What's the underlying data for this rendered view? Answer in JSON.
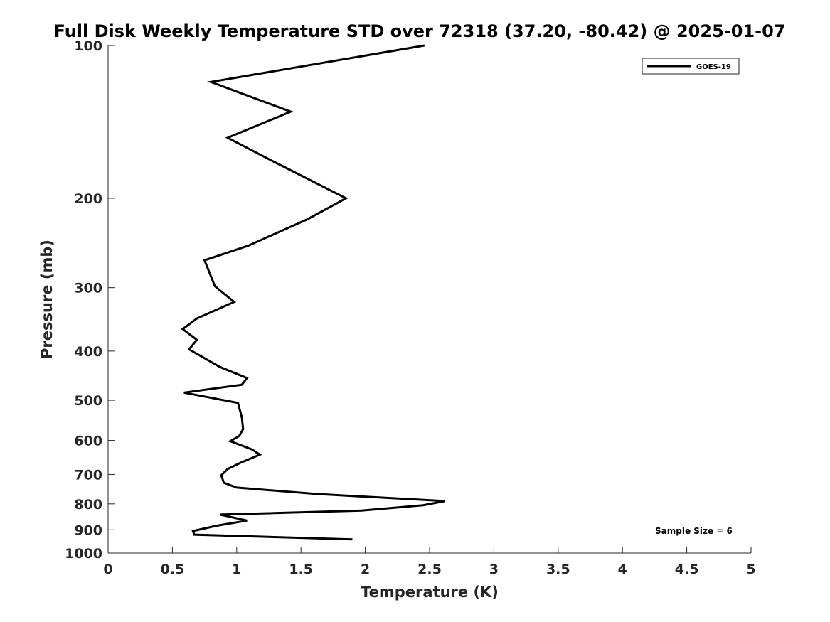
{
  "chart_data": {
    "type": "line",
    "title": "Full Disk Weekly Temperature STD over 72318 (37.20, -80.42) @ 2025-01-07",
    "xlabel": "Temperature (K)",
    "ylabel": "Pressure (mb)",
    "xlim": [
      0,
      5
    ],
    "ylim": [
      1000,
      100
    ],
    "yscale": "log",
    "x_ticks": [
      0,
      0.5,
      1,
      1.5,
      2,
      2.5,
      3,
      3.5,
      4,
      4.5,
      5
    ],
    "x_tick_labels": [
      "0",
      "0.5",
      "1",
      "1.5",
      "2",
      "2.5",
      "3",
      "3.5",
      "4",
      "4.5",
      "5"
    ],
    "y_ticks": [
      100,
      200,
      300,
      400,
      500,
      600,
      700,
      800,
      900,
      1000
    ],
    "y_tick_labels": [
      "100",
      "200",
      "300",
      "400",
      "500",
      "600",
      "700",
      "800",
      "900",
      "1000"
    ],
    "grid": false,
    "legend": {
      "position": "top-right",
      "entries": [
        "GOES-19"
      ]
    },
    "annotation": "Sample Size = 6",
    "series": [
      {
        "name": "GOES-19",
        "color": "#000000",
        "points": [
          [
            2.46,
            100
          ],
          [
            0.8,
            118
          ],
          [
            1.42,
            135
          ],
          [
            0.93,
            152
          ],
          [
            1.3,
            170
          ],
          [
            1.85,
            200
          ],
          [
            1.55,
            220
          ],
          [
            1.09,
            248
          ],
          [
            0.75,
            265
          ],
          [
            0.83,
            298
          ],
          [
            0.98,
            320
          ],
          [
            0.69,
            345
          ],
          [
            0.58,
            362
          ],
          [
            0.69,
            380
          ],
          [
            0.63,
            397
          ],
          [
            0.87,
            430
          ],
          [
            1.08,
            452
          ],
          [
            1.04,
            466
          ],
          [
            0.59,
            483
          ],
          [
            1.01,
            506
          ],
          [
            1.04,
            540
          ],
          [
            1.05,
            570
          ],
          [
            1.02,
            588
          ],
          [
            0.95,
            602
          ],
          [
            1.12,
            625
          ],
          [
            1.18,
            640
          ],
          [
            1.03,
            664
          ],
          [
            0.93,
            683
          ],
          [
            0.88,
            703
          ],
          [
            0.9,
            727
          ],
          [
            1.0,
            743
          ],
          [
            1.62,
            765
          ],
          [
            2.62,
            790
          ],
          [
            2.45,
            805
          ],
          [
            1.97,
            825
          ],
          [
            0.87,
            840
          ],
          [
            1.08,
            863
          ],
          [
            0.85,
            883
          ],
          [
            0.66,
            905
          ],
          [
            0.67,
            920
          ],
          [
            1.9,
            940
          ]
        ]
      }
    ]
  }
}
